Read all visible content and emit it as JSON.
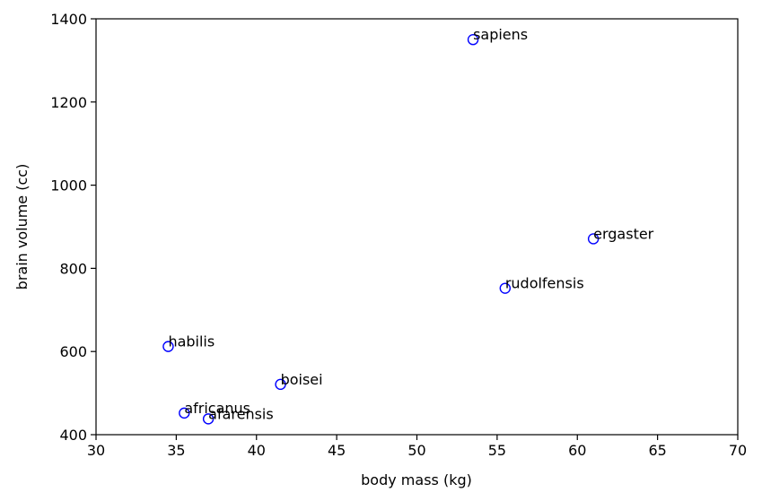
{
  "chart_data": {
    "type": "scatter",
    "title": "",
    "xlabel": "body mass (kg)",
    "ylabel": "brain volume (cc)",
    "xlim": [
      30,
      70
    ],
    "ylim": [
      400,
      1400
    ],
    "xticks": [
      30,
      35,
      40,
      45,
      50,
      55,
      60,
      65,
      70
    ],
    "yticks": [
      400,
      600,
      800,
      1000,
      1200,
      1400
    ],
    "grid": false,
    "marker_color": "#0000ff",
    "points": [
      {
        "label": "afarensis",
        "x": 37.0,
        "y": 438
      },
      {
        "label": "africanus",
        "x": 35.5,
        "y": 452
      },
      {
        "label": "habilis",
        "x": 34.5,
        "y": 612
      },
      {
        "label": "boisei",
        "x": 41.5,
        "y": 521
      },
      {
        "label": "rudolfensis",
        "x": 55.5,
        "y": 752
      },
      {
        "label": "ergaster",
        "x": 61.0,
        "y": 871
      },
      {
        "label": "sapiens",
        "x": 53.5,
        "y": 1350
      }
    ]
  }
}
